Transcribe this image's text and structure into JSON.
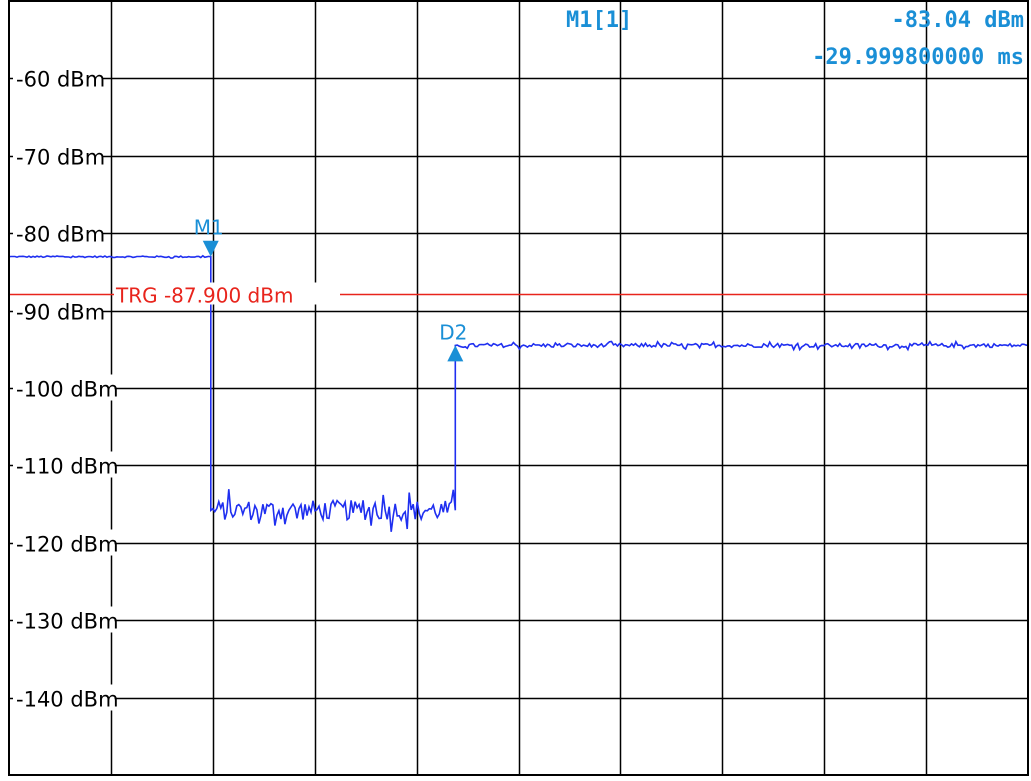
{
  "marker_readout": {
    "name": "M1[1]",
    "level": "-83.04 dBm",
    "time": "-29.999800000 ms"
  },
  "trigger_label": "TRG -87.900 dBm",
  "colors": {
    "trace": "#1f2ff0",
    "marker": "#1a8fd6",
    "trigger": "#e8241c",
    "grid": "#000000",
    "background": "#ffffff"
  },
  "chart_data": {
    "type": "line",
    "title": "",
    "xlabel": "",
    "ylabel": "",
    "ylim": [
      -150,
      -50
    ],
    "xlim": [
      0,
      10
    ],
    "x_divisions": 10,
    "grid": true,
    "y_ticks": [
      {
        "value": -60,
        "label": "-60 dBm"
      },
      {
        "value": -70,
        "label": "-70 dBm"
      },
      {
        "value": -80,
        "label": "-80 dBm"
      },
      {
        "value": -90,
        "label": "-90 dBm"
      },
      {
        "value": -100,
        "label": "-100 dBm"
      },
      {
        "value": -110,
        "label": "-110 dBm"
      },
      {
        "value": -120,
        "label": "-120 dBm"
      },
      {
        "value": -130,
        "label": "-130 dBm"
      },
      {
        "value": -140,
        "label": "-140 dBm"
      }
    ],
    "trigger_level": -87.9,
    "series": [
      {
        "segments": [
          {
            "x_start": 0.0,
            "x_end": 1.98,
            "level": -83.04,
            "noise": 0.1
          },
          {
            "x_start": 1.98,
            "x_end": 4.38,
            "level": -115.8,
            "noise": 1.3
          },
          {
            "x_start": 4.38,
            "x_end": 10.0,
            "level": -94.5,
            "noise": 0.25
          }
        ]
      }
    ],
    "markers": [
      {
        "label": "M1",
        "x": 1.98,
        "y": -83.04,
        "direction": "down"
      },
      {
        "label": "D2",
        "x": 4.38,
        "y": -94.5,
        "direction": "up"
      }
    ]
  }
}
